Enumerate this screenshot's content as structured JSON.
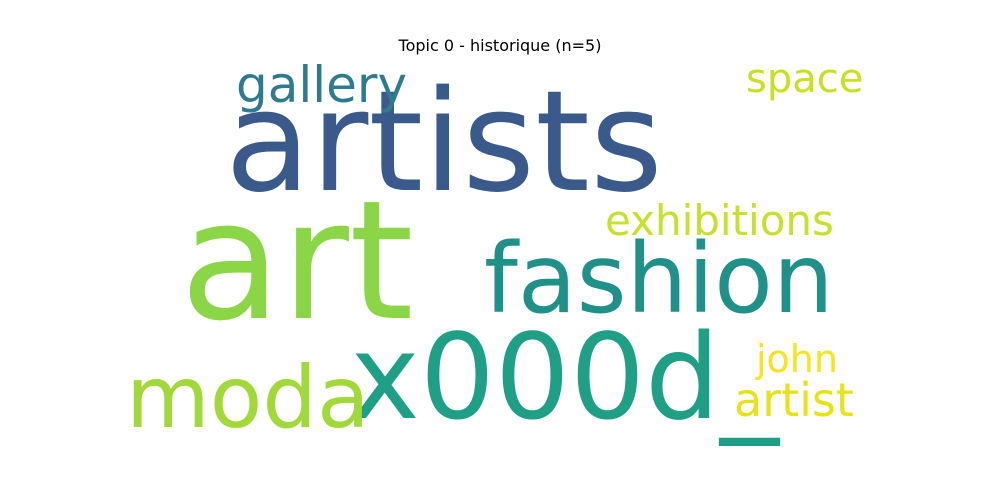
{
  "title": "Topic 0 - historique (n=5)",
  "words": [
    {
      "text": "artists",
      "color": "#3b5a8c"
    },
    {
      "text": "art",
      "color": "#8bd646"
    },
    {
      "text": "fashion",
      "color": "#1f9188"
    },
    {
      "text": "x000d_",
      "color": "#1fa086"
    },
    {
      "text": "moda",
      "color": "#a1d93a"
    },
    {
      "text": "gallery",
      "color": "#2f7b8e"
    },
    {
      "text": "exhibitions",
      "color": "#c6e02c"
    },
    {
      "text": "space",
      "color": "#c9e020"
    },
    {
      "text": "artist",
      "color": "#e7e319"
    },
    {
      "text": "john",
      "color": "#f6e41c"
    }
  ]
}
